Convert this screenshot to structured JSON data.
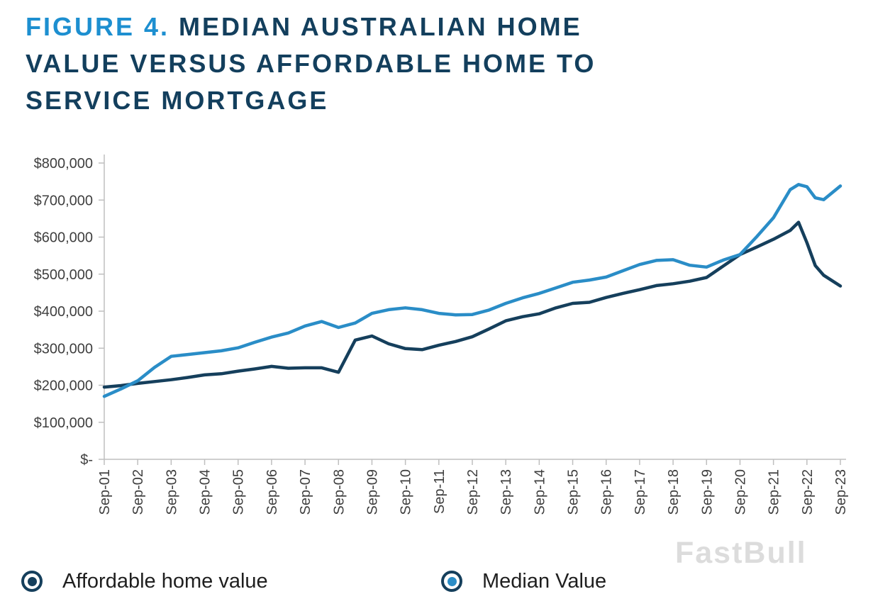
{
  "title": {
    "line1_prefix": "FIGURE 4.",
    "line1_rest": " MEDIAN AUSTRALIAN HOME",
    "line2": "VALUE VERSUS AFFORDABLE HOME TO",
    "line3": "SERVICE MORTGAGE"
  },
  "watermark": "FastBull",
  "colors": {
    "title_prefix": "#1d8fd0",
    "title_main": "#133f5d",
    "axis": "#bfbfbf",
    "tick_label": "#3f3f3f",
    "affordable_line": "#153f5c",
    "median_line": "#2a8dc7",
    "legend_ring": "#153f5c",
    "watermark": "#dcdcdc"
  },
  "legend": [
    {
      "label": "Affordable home value",
      "color": "#153f5c",
      "ring": "#153f5c"
    },
    {
      "label": "Median Value",
      "color": "#2a8dc7",
      "ring": "#153f5c"
    }
  ],
  "chart_data": {
    "type": "line",
    "title": "Figure 4. Median Australian home value versus affordable home to service mortgage",
    "xlabel": "",
    "ylabel": "",
    "ylim": [
      0,
      800000
    ],
    "grid": false,
    "legend_position": "bottom",
    "y_tick_labels": [
      "$-",
      "$100,000",
      "$200,000",
      "$300,000",
      "$400,000",
      "$500,000",
      "$600,000",
      "$700,000",
      "$800,000"
    ],
    "x_tick_labels": [
      "Sep-01",
      "Sep-02",
      "Sep-03",
      "Sep-04",
      "Sep-05",
      "Sep-06",
      "Sep-07",
      "Sep-08",
      "Sep-09",
      "Sep-10",
      "Sep-11",
      "Sep-12",
      "Sep-13",
      "Sep-14",
      "Sep-15",
      "Sep-16",
      "Sep-17",
      "Sep-18",
      "Sep-19",
      "Sep-20",
      "Sep-21",
      "Sep-22",
      "Sep-23"
    ],
    "x_unit": "years since Sep-01",
    "x": [
      0,
      0.5,
      1,
      1.5,
      2,
      2.5,
      3,
      3.5,
      4,
      4.5,
      5,
      5.5,
      6,
      6.5,
      7,
      7.5,
      8,
      8.5,
      9,
      9.5,
      10,
      10.5,
      11,
      11.5,
      12,
      12.5,
      13,
      13.5,
      14,
      14.5,
      15,
      15.5,
      16,
      16.5,
      17,
      17.5,
      18,
      18.5,
      19,
      19.5,
      20,
      20.5,
      20.75,
      21,
      21.25,
      21.5,
      22
    ],
    "series": [
      {
        "name": "Affordable home value",
        "color": "#153f5c",
        "values": [
          195000,
          199000,
          205000,
          210000,
          215000,
          221000,
          228000,
          231000,
          238000,
          244000,
          251000,
          246000,
          247000,
          247000,
          235000,
          322000,
          333000,
          312000,
          299000,
          296000,
          308000,
          318000,
          331000,
          352000,
          374000,
          385000,
          393000,
          409000,
          421000,
          424000,
          437000,
          448000,
          458000,
          469000,
          474000,
          481000,
          491000,
          522000,
          553000,
          573000,
          594000,
          618000,
          640000,
          585000,
          523000,
          497000,
          468000
        ]
      },
      {
        "name": "Median Value",
        "color": "#2a8dc7",
        "values": [
          170000,
          190000,
          212000,
          248000,
          278000,
          283000,
          288000,
          293000,
          301000,
          316000,
          330000,
          341000,
          360000,
          372000,
          356000,
          368000,
          394000,
          404000,
          409000,
          404000,
          394000,
          390000,
          391000,
          403000,
          421000,
          436000,
          448000,
          463000,
          478000,
          484000,
          492000,
          509000,
          526000,
          537000,
          539000,
          524000,
          519000,
          538000,
          553000,
          601000,
          652000,
          728000,
          742000,
          736000,
          706000,
          701000,
          738000
        ]
      }
    ]
  }
}
